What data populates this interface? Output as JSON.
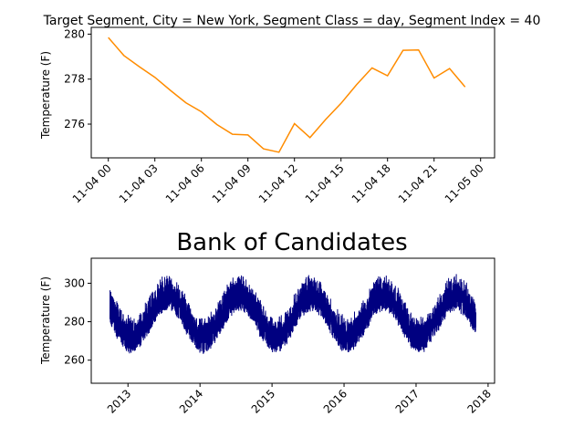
{
  "chart_data": [
    {
      "type": "line",
      "title": "Target Segment, City = New York, Segment Class = day, Segment Index = 40",
      "xlabel": "",
      "ylabel": "Temperature (F)",
      "color": "#ff8c00",
      "x_tick_labels": [
        "11-04 00",
        "11-04 03",
        "11-04 06",
        "11-04 09",
        "11-04 12",
        "11-04 15",
        "11-04 18",
        "11-04 21",
        "11-05 00"
      ],
      "x_hours": [
        0,
        1,
        2,
        3,
        4,
        5,
        6,
        7,
        8,
        9,
        10,
        11,
        12,
        13,
        14,
        15,
        16,
        17,
        18,
        19,
        20,
        21,
        22,
        23
      ],
      "values": [
        279.85,
        279.05,
        278.55,
        278.08,
        277.5,
        276.95,
        276.55,
        275.98,
        275.55,
        275.52,
        274.9,
        274.75,
        276.02,
        275.4,
        276.2,
        276.92,
        277.75,
        278.5,
        278.15,
        279.28,
        279.3,
        278.05,
        278.47,
        277.65
      ],
      "xlim_hours": [
        -1.1,
        24.9
      ],
      "ylim": [
        274.5,
        280.3
      ],
      "y_ticks": [
        276,
        278,
        280
      ]
    },
    {
      "type": "line",
      "title": "Bank of Candidates",
      "xlabel": "",
      "ylabel": "Temperature (F)",
      "color": "#000080",
      "x_tick_labels": [
        "2013",
        "2014",
        "2015",
        "2016",
        "2017",
        "2018"
      ],
      "x_range_years": [
        2012.75,
        2017.83
      ],
      "xlim_years": [
        2012.49,
        2018.09
      ],
      "ylim": [
        248,
        313
      ],
      "y_ticks": [
        260,
        280,
        300
      ],
      "seasonal_annual_mean": 283,
      "seasonal_amplitude": 11,
      "seasonal_peak_fraction_of_year": 0.55,
      "daily_swing": 13
    }
  ]
}
